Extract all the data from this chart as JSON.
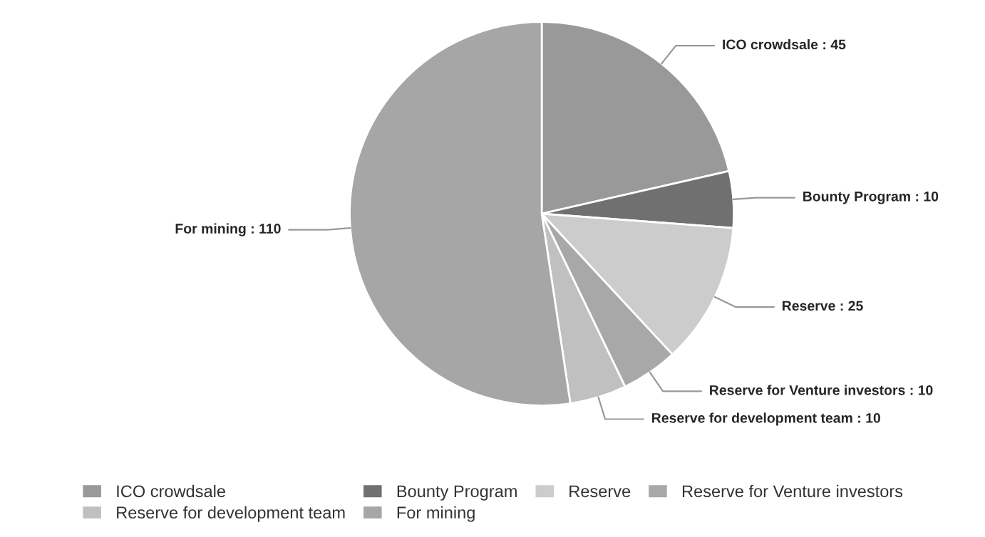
{
  "chart_data": {
    "type": "pie",
    "categories": [
      "ICO crowdsale",
      "Bounty Program",
      "Reserve",
      "Reserve for Venture investors",
      "Reserve for development team",
      "For mining"
    ],
    "values": [
      45,
      10,
      25,
      10,
      10,
      110
    ],
    "value_labels": [
      ": 45",
      ": 10",
      ": 25",
      ": 10",
      ": 10",
      ": 110"
    ],
    "colors": [
      "#999999",
      "#707070",
      "#cccccc",
      "#a8a8a8",
      "#c0c0c0",
      "#a6a6a6"
    ],
    "legend": "bottom"
  }
}
